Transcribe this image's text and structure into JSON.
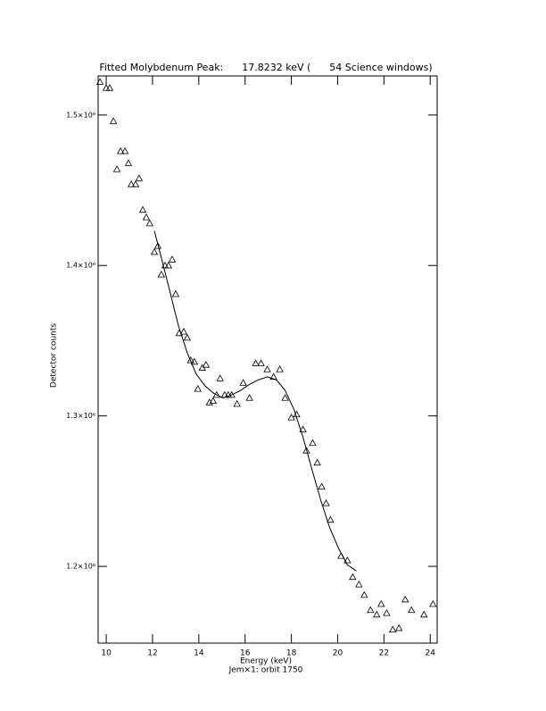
{
  "chart_data": {
    "type": "scatter",
    "title": "Fitted Molybdenum Peak:      17.8232 keV (      54 Science windows)",
    "x_label": "Energy (keV)",
    "subtitle": "Jem×1: orbit 1750",
    "y_label": "Detector counts",
    "xlim": [
      9.65,
      24.3
    ],
    "ylim": [
      1149000,
      1526000
    ],
    "xticks": [
      10,
      12,
      14,
      16,
      18,
      20,
      22,
      24
    ],
    "yticks": [
      {
        "value": 1200000,
        "label": "1.2×10⁶"
      },
      {
        "value": 1300000,
        "label": "1.3×10⁶"
      },
      {
        "value": 1400000,
        "label": "1.4×10⁶"
      },
      {
        "value": 1500000,
        "label": "1.5×10⁶"
      }
    ],
    "color": "#000000",
    "series": [
      {
        "style": "marker",
        "marker": "triangle",
        "x": [
          9.73,
          10.0,
          10.15,
          10.31,
          10.46,
          10.62,
          10.81,
          10.96,
          11.08,
          11.27,
          11.42,
          11.58,
          11.73,
          11.88,
          12.08,
          12.23,
          12.38,
          12.54,
          12.69,
          12.85,
          13.0,
          13.15,
          13.35,
          13.5,
          13.65,
          13.81,
          13.96,
          14.15,
          14.31,
          14.46,
          14.62,
          14.77,
          14.92,
          15.12,
          15.27,
          15.42,
          15.65,
          15.92,
          16.19,
          16.46,
          16.69,
          16.96,
          17.23,
          17.5,
          17.73,
          18.0,
          18.23,
          18.5,
          18.65,
          18.92,
          19.12,
          19.31,
          19.5,
          19.69,
          20.15,
          20.42,
          20.65,
          20.92,
          21.15,
          21.42,
          21.69,
          21.88,
          22.12,
          22.38,
          22.65,
          22.92,
          23.19,
          23.73,
          24.12
        ],
        "values": [
          1522000,
          1518000,
          1518000,
          1496000,
          1464000,
          1476000,
          1476000,
          1468000,
          1454000,
          1454000,
          1458000,
          1437000,
          1432000,
          1428000,
          1409000,
          1413000,
          1394000,
          1400000,
          1400000,
          1404000,
          1381000,
          1355000,
          1356000,
          1352000,
          1337000,
          1336000,
          1318000,
          1332000,
          1334000,
          1309000,
          1310000,
          1314000,
          1325000,
          1314000,
          1314000,
          1314000,
          1308000,
          1322000,
          1312000,
          1335000,
          1335000,
          1331000,
          1326000,
          1331000,
          1312000,
          1299000,
          1301000,
          1291000,
          1277000,
          1282000,
          1269000,
          1253000,
          1242000,
          1231000,
          1207000,
          1204000,
          1193000,
          1188000,
          1181000,
          1171000,
          1168000,
          1175000,
          1169000,
          1158000,
          1159000,
          1178000,
          1171000,
          1168000,
          1175000
        ]
      },
      {
        "style": "line",
        "x": [
          12.08,
          12.35,
          12.73,
          13.12,
          13.5,
          13.88,
          14.27,
          14.65,
          15.04,
          15.42,
          15.81,
          16.19,
          16.58,
          16.96,
          17.35,
          17.73,
          18.12,
          18.5,
          18.88,
          19.27,
          19.65,
          20.04,
          20.42,
          20.81
        ],
        "values": [
          1423000,
          1407000,
          1384000,
          1360000,
          1342000,
          1328000,
          1320000,
          1315000,
          1312000,
          1314000,
          1317000,
          1321000,
          1324000,
          1326000,
          1324000,
          1317000,
          1304000,
          1286000,
          1265000,
          1244000,
          1226000,
          1212000,
          1201000,
          1197000
        ]
      }
    ]
  }
}
